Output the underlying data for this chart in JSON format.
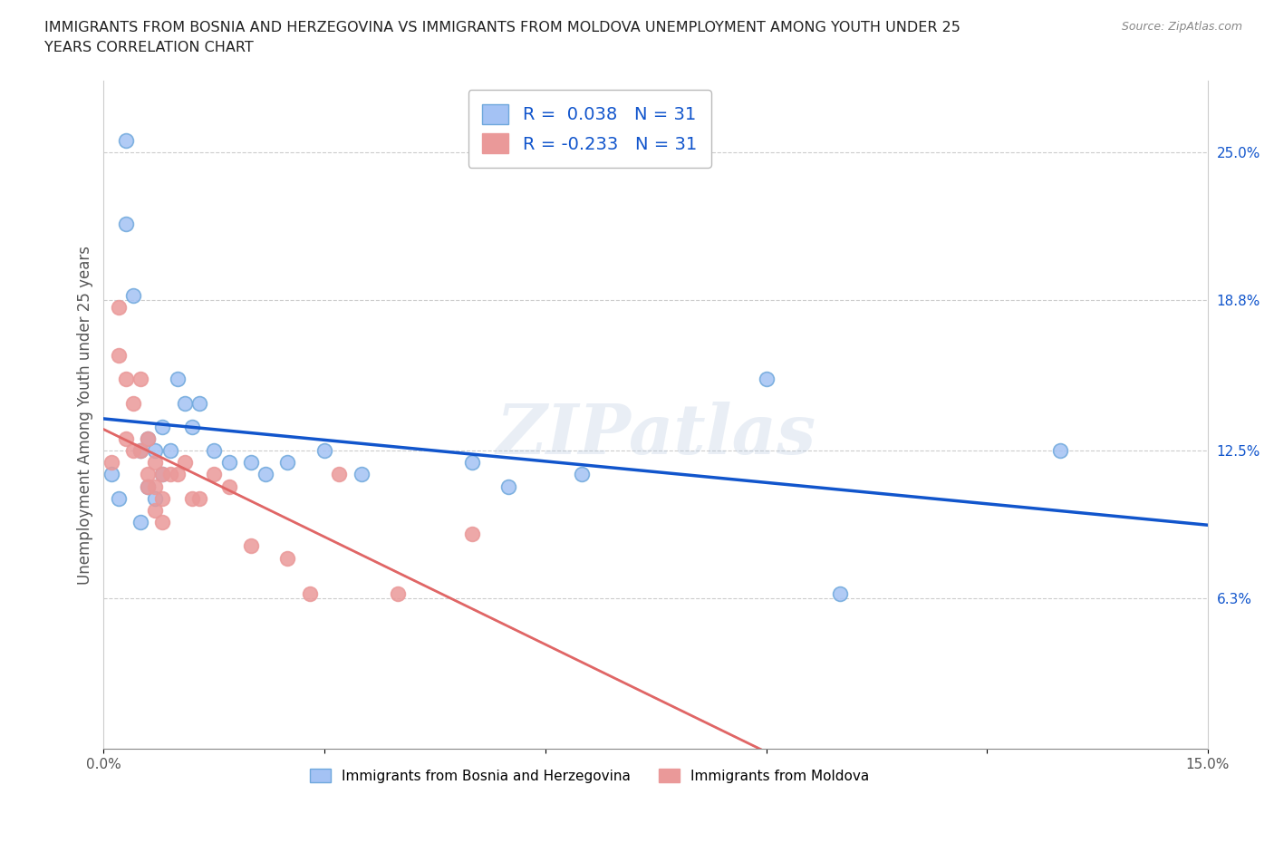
{
  "title": "IMMIGRANTS FROM BOSNIA AND HERZEGOVINA VS IMMIGRANTS FROM MOLDOVA UNEMPLOYMENT AMONG YOUTH UNDER 25\nYEARS CORRELATION CHART",
  "source": "Source: ZipAtlas.com",
  "ylabel": "Unemployment Among Youth under 25 years",
  "xlim": [
    0.0,
    0.15
  ],
  "ylim": [
    0.0,
    0.28
  ],
  "x_ticks": [
    0.0,
    0.03,
    0.06,
    0.09,
    0.12,
    0.15
  ],
  "x_tick_labels": [
    "0.0%",
    "",
    "",
    "",
    "",
    "15.0%"
  ],
  "y_tick_labels_right": [
    "6.3%",
    "12.5%",
    "18.8%",
    "25.0%"
  ],
  "y_tick_values_right": [
    0.063,
    0.125,
    0.188,
    0.25
  ],
  "bosnia_color": "#6fa8dc",
  "bosnia_color_fill": "#a4c2f4",
  "moldova_color": "#ea9999",
  "moldova_color_fill": "#ea9999",
  "R_bosnia": 0.038,
  "R_moldova": -0.233,
  "N_bosnia": 31,
  "N_moldova": 31,
  "legend_label_1": "Immigrants from Bosnia and Herzegovina",
  "legend_label_2": "Immigrants from Moldova",
  "watermark": "ZIPatlas",
  "bosnia_x": [
    0.001,
    0.002,
    0.003,
    0.003,
    0.004,
    0.005,
    0.005,
    0.006,
    0.006,
    0.007,
    0.007,
    0.008,
    0.008,
    0.009,
    0.01,
    0.011,
    0.012,
    0.013,
    0.015,
    0.017,
    0.02,
    0.022,
    0.025,
    0.03,
    0.035,
    0.05,
    0.055,
    0.065,
    0.09,
    0.1,
    0.13
  ],
  "bosnia_y": [
    0.115,
    0.105,
    0.255,
    0.22,
    0.19,
    0.125,
    0.095,
    0.13,
    0.11,
    0.125,
    0.105,
    0.135,
    0.115,
    0.125,
    0.155,
    0.145,
    0.135,
    0.145,
    0.125,
    0.12,
    0.12,
    0.115,
    0.12,
    0.125,
    0.115,
    0.12,
    0.11,
    0.115,
    0.155,
    0.065,
    0.125
  ],
  "moldova_x": [
    0.001,
    0.002,
    0.002,
    0.003,
    0.003,
    0.004,
    0.004,
    0.005,
    0.005,
    0.006,
    0.006,
    0.006,
    0.007,
    0.007,
    0.007,
    0.008,
    0.008,
    0.008,
    0.009,
    0.01,
    0.011,
    0.012,
    0.013,
    0.015,
    0.017,
    0.02,
    0.025,
    0.028,
    0.032,
    0.04,
    0.05
  ],
  "moldova_y": [
    0.12,
    0.185,
    0.165,
    0.155,
    0.13,
    0.145,
    0.125,
    0.155,
    0.125,
    0.115,
    0.11,
    0.13,
    0.12,
    0.11,
    0.1,
    0.115,
    0.105,
    0.095,
    0.115,
    0.115,
    0.12,
    0.105,
    0.105,
    0.115,
    0.11,
    0.085,
    0.08,
    0.065,
    0.115,
    0.065,
    0.09
  ]
}
